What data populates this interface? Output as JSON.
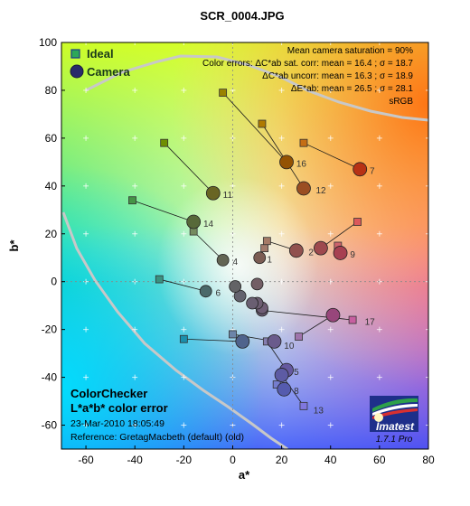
{
  "title": "SCR_0004.JPG",
  "legend": {
    "ideal": "Ideal",
    "camera": "Camera"
  },
  "stats": {
    "line1": "Mean camera saturation = 90%",
    "line2": "Color errors:  ΔC*ab sat. corr:  mean = 16.4 ;  σ = 18.7",
    "line3": "ΔC*ab uncorr:  mean = 16.3 ;  σ = 18.9",
    "line4": "ΔE*ab:  mean = 26.5 ;  σ = 28.1",
    "line5": "sRGB"
  },
  "caption": {
    "line1": "ColorChecker",
    "line2": "L*a*b* color error",
    "line3": "23-Mar-2010 18:05:49",
    "line4": "Reference: GretagMacbeth (default) (old)"
  },
  "logo": {
    "name": "Imatest",
    "version": "1.7.1  Pro"
  },
  "chart_data": {
    "type": "scatter",
    "title": "SCR_0004.JPG",
    "xlabel": "a*",
    "ylabel": "b*",
    "xlim": [
      -70,
      80
    ],
    "ylim": [
      -70,
      100
    ],
    "xticks": [
      -60,
      -40,
      -20,
      0,
      20,
      40,
      60,
      80
    ],
    "yticks": [
      -60,
      -40,
      -20,
      0,
      20,
      40,
      60,
      80,
      100
    ],
    "grid": true,
    "legend_position": "top-left",
    "series": [
      {
        "name": "Ideal",
        "marker": "square",
        "points": [
          {
            "id": 1,
            "x": 13,
            "y": 14
          },
          {
            "id": 2,
            "x": 14,
            "y": 17
          },
          {
            "id": 3,
            "x": 27,
            "y": -23
          },
          {
            "id": 4,
            "x": -16,
            "y": 21
          },
          {
            "id": 5,
            "x": 14,
            "y": -25
          },
          {
            "id": 6,
            "x": -30,
            "y": 1
          },
          {
            "id": 7,
            "x": 29,
            "y": 58
          },
          {
            "id": 8,
            "x": 18,
            "y": -43
          },
          {
            "id": 9,
            "x": 43,
            "y": 15
          },
          {
            "id": 10,
            "x": 0,
            "y": -22
          },
          {
            "id": 11,
            "x": -28,
            "y": 58
          },
          {
            "id": 12,
            "x": 12,
            "y": 66
          },
          {
            "id": 13,
            "x": 29,
            "y": -52
          },
          {
            "id": 14,
            "x": -41,
            "y": 34
          },
          {
            "id": 15,
            "x": 51,
            "y": 25
          },
          {
            "id": 16,
            "x": -4,
            "y": 79
          },
          {
            "id": 17,
            "x": 49,
            "y": -16
          },
          {
            "id": 18,
            "x": -20,
            "y": -24
          }
        ]
      },
      {
        "name": "Camera",
        "marker": "circle",
        "points": [
          {
            "id": 1,
            "x": 11,
            "y": 10
          },
          {
            "id": 2,
            "x": 26,
            "y": 13
          },
          {
            "id": 3,
            "x": 41,
            "y": -14
          },
          {
            "id": 4,
            "x": -4,
            "y": 9
          },
          {
            "id": 5,
            "x": 22,
            "y": -37
          },
          {
            "id": 6,
            "x": -11,
            "y": -4
          },
          {
            "id": 7,
            "x": 52,
            "y": 47
          },
          {
            "id": 8,
            "x": 21,
            "y": -45
          },
          {
            "id": 9,
            "x": 44,
            "y": 12
          },
          {
            "id": 10,
            "x": 17,
            "y": -25
          },
          {
            "id": 11,
            "x": -8,
            "y": 37
          },
          {
            "id": 12,
            "x": 29,
            "y": 39
          },
          {
            "id": 13,
            "x": 20,
            "y": -39
          },
          {
            "id": 14,
            "x": -16,
            "y": 25
          },
          {
            "id": 15,
            "x": 36,
            "y": 14
          },
          {
            "id": 16,
            "x": 22,
            "y": 50
          },
          {
            "id": 17,
            "x": 12,
            "y": -12
          },
          {
            "id": 18,
            "x": 4,
            "y": -25
          },
          {
            "id": 19,
            "x": 10,
            "y": -1
          },
          {
            "id": 20,
            "x": 12,
            "y": -11
          },
          {
            "id": 21,
            "x": 10,
            "y": -9
          },
          {
            "id": 22,
            "x": 8,
            "y": -9
          },
          {
            "id": 23,
            "x": 3,
            "y": -6
          },
          {
            "id": 24,
            "x": 1,
            "y": -2
          }
        ]
      }
    ],
    "labels": [
      {
        "text": "1",
        "x": 14,
        "y": 8
      },
      {
        "text": "2",
        "x": 31,
        "y": 11
      },
      {
        "text": "4",
        "x": 0,
        "y": 7
      },
      {
        "text": "5",
        "x": 25,
        "y": -39
      },
      {
        "text": "6",
        "x": -7,
        "y": -6
      },
      {
        "text": "7",
        "x": 56,
        "y": 45
      },
      {
        "text": "8",
        "x": 25,
        "y": -47
      },
      {
        "text": "9",
        "x": 48,
        "y": 10
      },
      {
        "text": "10",
        "x": 21,
        "y": -28
      },
      {
        "text": "11",
        "x": -4,
        "y": 35
      },
      {
        "text": "12",
        "x": 34,
        "y": 37
      },
      {
        "text": "13",
        "x": 33,
        "y": -55
      },
      {
        "text": "14",
        "x": -12,
        "y": 23
      },
      {
        "text": "16",
        "x": 26,
        "y": 48
      },
      {
        "text": "17",
        "x": 54,
        "y": -18
      }
    ]
  }
}
